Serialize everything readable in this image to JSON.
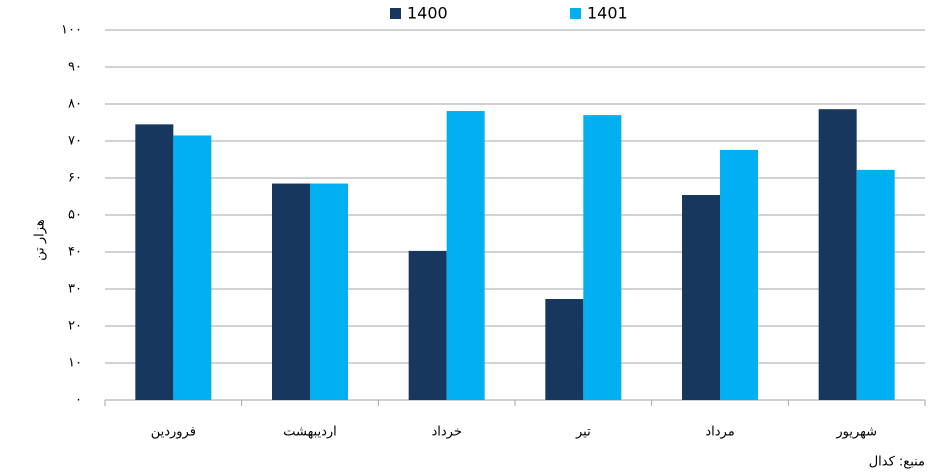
{
  "chart_data": {
    "type": "bar",
    "y_label": "هزار تن",
    "source": "منبع: کدال",
    "categories": [
      "فروردین",
      "اردیبهشت",
      "خرداد",
      "تیر",
      "مرداد",
      "شهریور"
    ],
    "series": [
      {
        "name": "1400",
        "color": "#17375e",
        "values": [
          74.5,
          58.5,
          40.3,
          27.3,
          55.4,
          78.6
        ]
      },
      {
        "name": "1401",
        "color": "#00b0f0",
        "values": [
          71.5,
          58.5,
          78.1,
          77,
          67.6,
          62.2
        ]
      }
    ],
    "ylim": [
      0,
      100
    ],
    "yticks": [
      {
        "value": 0,
        "label": "۰"
      },
      {
        "value": 10,
        "label": "۱۰"
      },
      {
        "value": 20,
        "label": "۲۰"
      },
      {
        "value": 30,
        "label": "۳۰"
      },
      {
        "value": 40,
        "label": "۴۰"
      },
      {
        "value": 50,
        "label": "۵۰"
      },
      {
        "value": 60,
        "label": "۶۰"
      },
      {
        "value": 70,
        "label": "۷۰"
      },
      {
        "value": 80,
        "label": "۸۰"
      },
      {
        "value": 90,
        "label": "۹۰"
      },
      {
        "value": 100,
        "label": "۱۰۰"
      }
    ],
    "grid": true,
    "legend": "top"
  }
}
